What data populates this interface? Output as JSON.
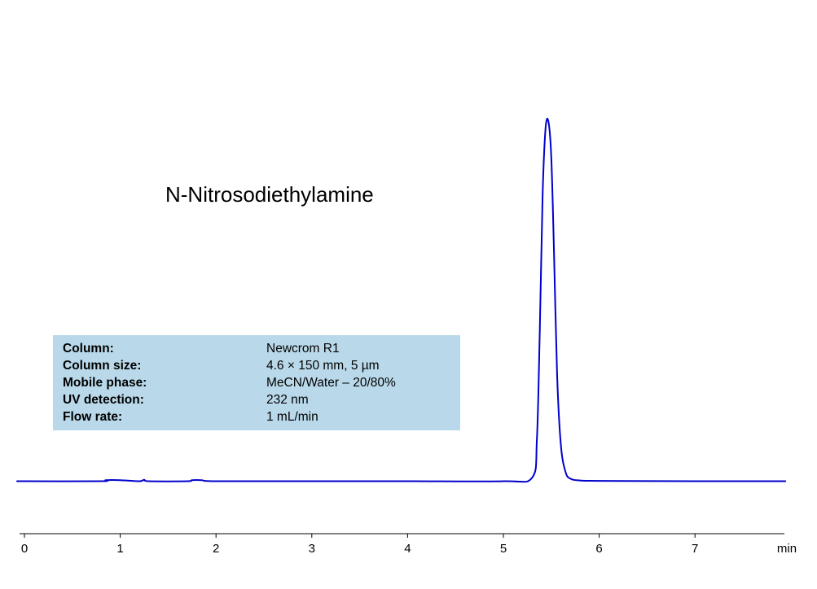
{
  "chart_data": {
    "type": "line",
    "title": "N-Nitrosodiethylamine",
    "xlabel": "min",
    "ylabel": "",
    "xlim": [
      -0.05,
      7.95
    ],
    "x_ticks": [
      "0",
      "1",
      "2",
      "3",
      "4",
      "5",
      "6",
      "7"
    ],
    "axis_unit": "min",
    "series": [
      {
        "color": "#0000cc",
        "x": [
          0,
          0.8,
          0.85,
          1.0,
          1.2,
          1.25,
          1.3,
          1.7,
          1.75,
          1.85,
          2.0,
          3.0,
          4.0,
          5.0,
          5.3,
          5.35,
          5.38,
          5.41,
          5.44,
          5.47,
          5.5,
          5.53,
          5.56,
          5.6,
          5.65,
          5.7,
          5.8,
          6.0,
          7.0,
          7.95
        ],
        "y": [
          0,
          0,
          0.003,
          0.003,
          0,
          0.004,
          0,
          0,
          0.003,
          0.003,
          0,
          0,
          0,
          0,
          0.01,
          0.12,
          0.42,
          0.8,
          0.98,
          1.0,
          0.9,
          0.62,
          0.3,
          0.1,
          0.025,
          0.007,
          0.002,
          0.001,
          0,
          0
        ]
      }
    ]
  },
  "conditions": [
    {
      "label": "Column:",
      "value": "Newcrom R1"
    },
    {
      "label": "Column size:",
      "value": "4.6 × 150 mm, 5 µm"
    },
    {
      "label": "Mobile phase:",
      "value": "MeCN/Water – 20/80%"
    },
    {
      "label": "UV detection:",
      "value": "232 nm"
    },
    {
      "label": "Flow rate:",
      "value": "1 mL/min"
    }
  ]
}
